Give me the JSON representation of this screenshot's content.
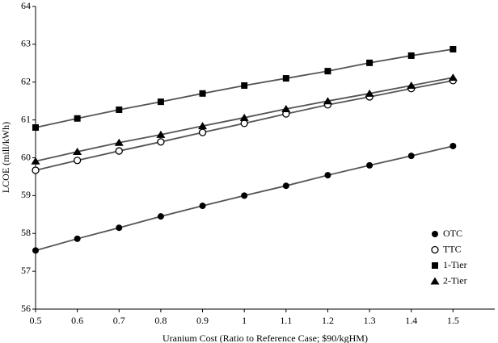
{
  "chart_data": {
    "type": "line",
    "x_label": "Uranium Cost (Ratio to Reference Case; $90/kgHM)",
    "y_label": "LCOE (mill/kWh)",
    "x": [
      0.5,
      0.6,
      0.7,
      0.8,
      0.9,
      1.0,
      1.1,
      1.2,
      1.3,
      1.4,
      1.5
    ],
    "series": [
      {
        "name": "OTC",
        "color": "#555555",
        "marker": "circle-filled",
        "values": [
          57.55,
          57.86,
          58.15,
          58.45,
          58.73,
          59.0,
          59.26,
          59.54,
          59.8,
          60.05,
          60.31
        ]
      },
      {
        "name": "TTC",
        "color": "#555555",
        "marker": "circle-open",
        "values": [
          59.67,
          59.93,
          60.18,
          60.42,
          60.67,
          60.91,
          61.16,
          61.4,
          61.61,
          61.83,
          62.04
        ]
      },
      {
        "name": "1-Tier",
        "color": "#555555",
        "marker": "square",
        "values": [
          60.8,
          61.04,
          61.27,
          61.48,
          61.7,
          61.91,
          62.1,
          62.29,
          62.51,
          62.7,
          62.87
        ]
      },
      {
        "name": "2-Tier",
        "color": "#555555",
        "marker": "triangle",
        "values": [
          59.91,
          60.16,
          60.4,
          60.61,
          60.84,
          61.06,
          61.29,
          61.5,
          61.7,
          61.91,
          62.12
        ]
      }
    ],
    "xlim": [
      0.5,
      1.6
    ],
    "xticks": [
      0.5,
      0.6,
      0.7,
      0.8,
      0.9,
      1,
      1.1,
      1.2,
      1.3,
      1.4,
      1.5
    ],
    "ylim": [
      56,
      64
    ],
    "yticks": [
      56,
      57,
      58,
      59,
      60,
      61,
      62,
      63,
      64
    ],
    "grid": false,
    "legend": "lower-right"
  }
}
